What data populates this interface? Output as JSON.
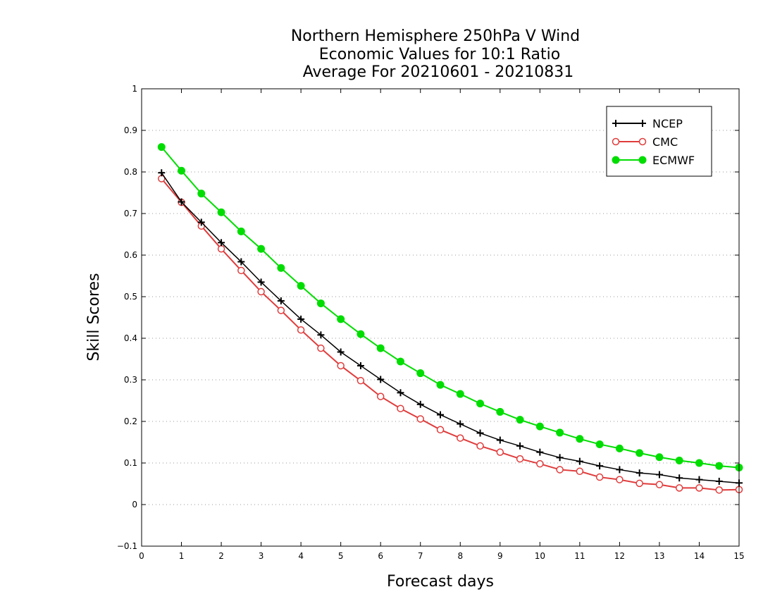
{
  "chart_data": {
    "type": "line",
    "title_lines": [
      "Northern Hemisphere 250hPa V Wind",
      "Economic Values for 10:1 Ratio",
      "Average For 20210601 - 20210831"
    ],
    "xlabel": "Forecast days",
    "ylabel": "Skill Scores",
    "xlim": [
      0,
      15
    ],
    "ylim": [
      -0.1,
      1
    ],
    "xticks": [
      "0",
      "1",
      "2",
      "3",
      "4",
      "5",
      "6",
      "7",
      "8",
      "9",
      "10",
      "11",
      "12",
      "13",
      "14",
      "15"
    ],
    "yticks": [
      "−0.1",
      "0",
      "0.1",
      "0.2",
      "0.3",
      "0.4",
      "0.5",
      "0.6",
      "0.7",
      "0.8",
      "0.9",
      "1"
    ],
    "grid": "horizontal dotted",
    "legend_position": "top-right",
    "x": [
      0.5,
      1,
      1.5,
      2,
      2.5,
      3,
      3.5,
      4,
      4.5,
      5,
      5.5,
      6,
      6.5,
      7,
      7.5,
      8,
      8.5,
      9,
      9.5,
      10,
      10.5,
      11,
      11.5,
      12,
      12.5,
      13,
      13.5,
      14,
      14.5,
      15
    ],
    "series": [
      {
        "name": "NCEP",
        "color": "#000000",
        "marker": "plus",
        "values": [
          0.798,
          0.728,
          0.679,
          0.63,
          0.584,
          0.535,
          0.49,
          0.446,
          0.408,
          0.367,
          0.334,
          0.301,
          0.269,
          0.241,
          0.216,
          0.194,
          0.172,
          0.155,
          0.141,
          0.126,
          0.113,
          0.104,
          0.093,
          0.084,
          0.076,
          0.072,
          0.064,
          0.06,
          0.056,
          0.052
        ]
      },
      {
        "name": "CMC",
        "color": "#e03c3c",
        "marker": "open-circle",
        "values": [
          0.784,
          0.727,
          0.67,
          0.615,
          0.563,
          0.512,
          0.467,
          0.42,
          0.376,
          0.334,
          0.298,
          0.26,
          0.231,
          0.206,
          0.18,
          0.16,
          0.141,
          0.126,
          0.11,
          0.098,
          0.084,
          0.08,
          0.066,
          0.06,
          0.051,
          0.048,
          0.04,
          0.04,
          0.035,
          0.036
        ]
      },
      {
        "name": "ECMWF",
        "color": "#00dd00",
        "marker": "filled-circle",
        "values": [
          0.86,
          0.803,
          0.748,
          0.703,
          0.657,
          0.615,
          0.569,
          0.526,
          0.484,
          0.446,
          0.41,
          0.376,
          0.344,
          0.316,
          0.288,
          0.266,
          0.243,
          0.223,
          0.204,
          0.188,
          0.173,
          0.158,
          0.145,
          0.135,
          0.124,
          0.114,
          0.106,
          0.1,
          0.093,
          0.089
        ]
      }
    ]
  }
}
